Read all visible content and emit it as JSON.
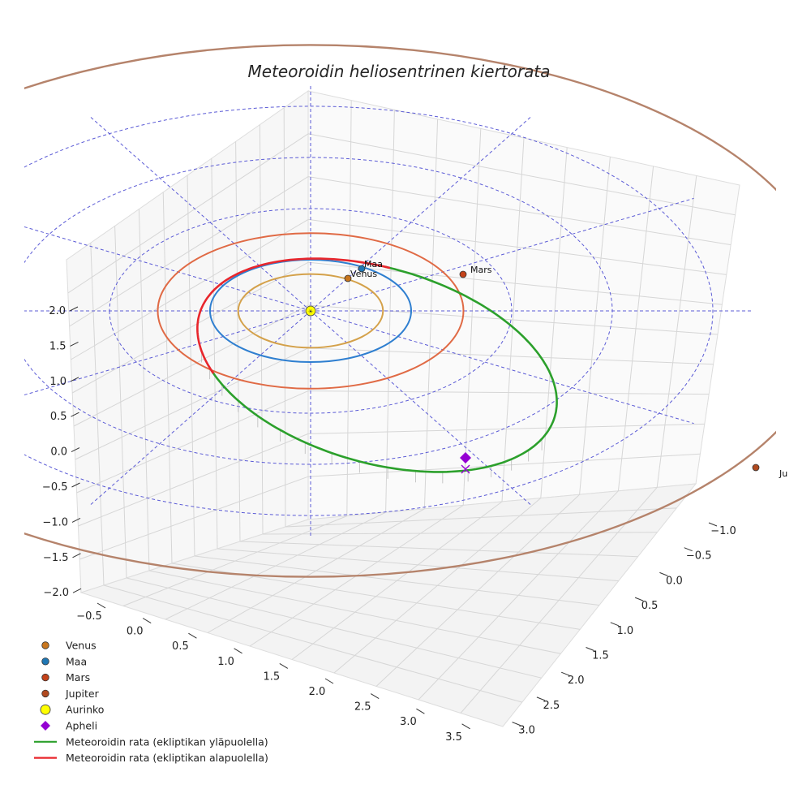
{
  "chart_data": {
    "type": "3d-orbit-plot",
    "title": "Meteoroidin heliosentrinen kiertorata",
    "axes": {
      "z_ticks": [
        "−2.0",
        "−1.5",
        "−1.0",
        "−0.5",
        "0.0",
        "0.5",
        "1.0",
        "1.5",
        "2.0"
      ],
      "x_ticks": [
        "−0.5",
        "0.0",
        "0.5",
        "1.0",
        "1.5",
        "2.0",
        "2.5",
        "3.0",
        "3.5"
      ],
      "y_ticks": [
        "−1.0",
        "−0.5",
        "0.0",
        "0.5",
        "1.0",
        "1.5",
        "2.0",
        "2.5",
        "3.0"
      ],
      "x_range_au": [
        -0.7,
        3.7
      ],
      "y_range_au": [
        -1.3,
        3.1
      ],
      "z_range_au": [
        -2.2,
        2.2
      ]
    },
    "planets": [
      {
        "name": "Venus",
        "label": "Venus",
        "orbit_radius_au": 0.72,
        "color": "#d4a14a",
        "marker_color": "#c8761e"
      },
      {
        "name": "Maa",
        "label": "Maa",
        "orbit_radius_au": 1.0,
        "color": "#2f7fd0",
        "marker_color": "#1f77b4"
      },
      {
        "name": "Mars",
        "label": "Mars",
        "orbit_radius_au": 1.52,
        "color": "#e06a45",
        "marker_color": "#c4421a"
      },
      {
        "name": "Jupiter",
        "label": "Ju",
        "orbit_radius_au": 5.2,
        "color": "#b5836b",
        "marker_color": "#b04a20"
      }
    ],
    "sun": {
      "name": "Aurinko",
      "color": "#ffff00"
    },
    "meteoroid_orbit": {
      "above_ecliptic_label": "Meteoroidin rata (ekliptikan yläpuolella)",
      "below_ecliptic_label": "Meteoroidin rata (ekliptikan alapuolella)",
      "above_color": "#2ca02c",
      "below_color": "#e8262c",
      "aphelion_label": "Apheli",
      "aphelion_color": "#9400d3"
    },
    "reference_grid": "ecliptic polar grid (dashed, blue)",
    "legend": [
      {
        "label": "Venus",
        "kind": "dot",
        "color": "#c8761e"
      },
      {
        "label": "Maa",
        "kind": "dot",
        "color": "#1f77b4"
      },
      {
        "label": "Mars",
        "kind": "dot",
        "color": "#c4421a"
      },
      {
        "label": "Jupiter",
        "kind": "dot",
        "color": "#b04a20"
      },
      {
        "label": "Aurinko",
        "kind": "sun",
        "color": "#ffff00"
      },
      {
        "label": "Apheli",
        "kind": "diamond",
        "color": "#9400d3"
      },
      {
        "label": "Meteoroidin rata (ekliptikan yläpuolella)",
        "kind": "line",
        "color": "#2ca02c"
      },
      {
        "label": "Meteoroidin rata (ekliptikan alapuolella)",
        "kind": "line",
        "color": "#e8262c"
      }
    ],
    "legend_placement": "bottom-left"
  }
}
